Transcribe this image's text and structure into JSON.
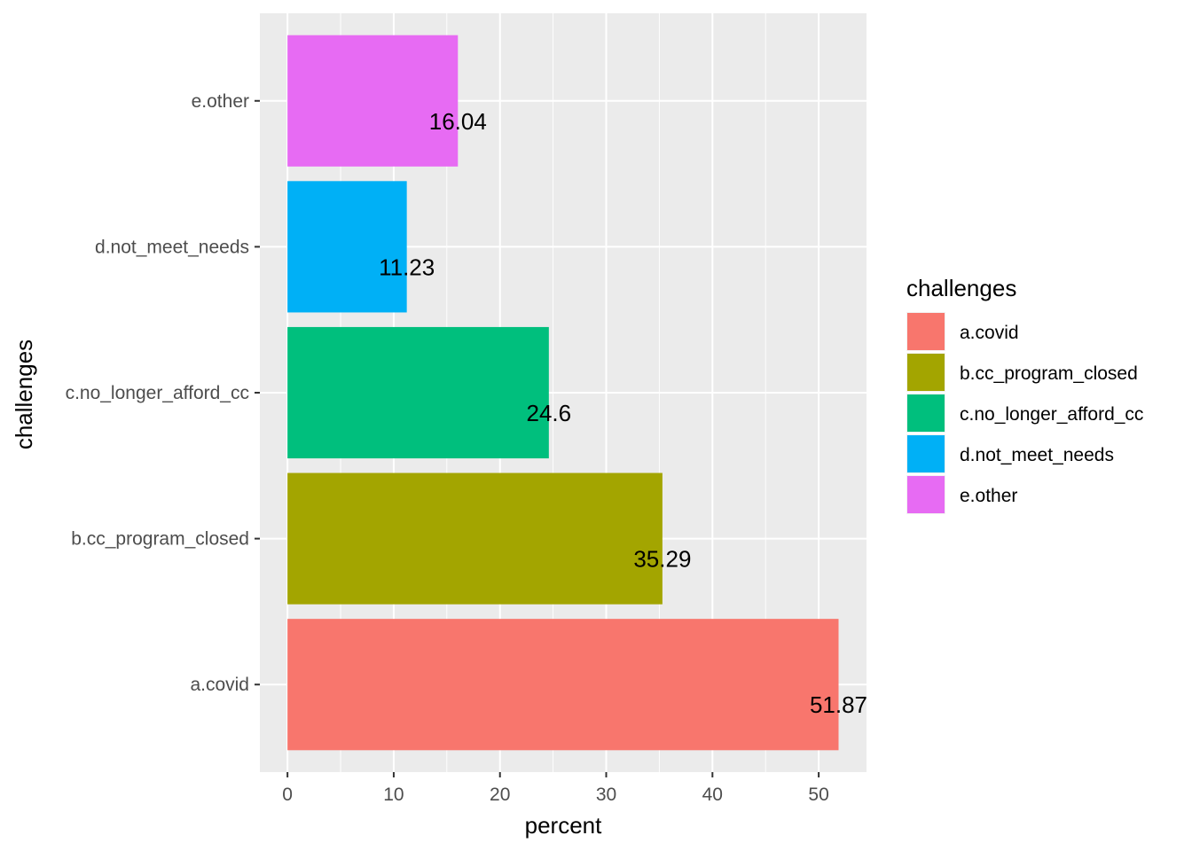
{
  "chart_data": {
    "type": "bar",
    "orientation": "horizontal",
    "title": "",
    "xlabel": "percent",
    "ylabel": "challenges",
    "categories": [
      "a.covid",
      "b.cc_program_closed",
      "c.no_longer_afford_cc",
      "d.not_meet_needs",
      "e.other"
    ],
    "values": [
      51.87,
      35.29,
      24.6,
      11.23,
      16.04
    ],
    "data_labels": [
      "51.87",
      "35.29",
      "24.6",
      "11.23",
      "16.04"
    ],
    "colors": [
      "#F8766D",
      "#A3A500",
      "#00BF7D",
      "#00B0F6",
      "#E76BF3"
    ],
    "xlim": [
      -2.6,
      54.5
    ],
    "x_ticks": [
      0,
      10,
      20,
      30,
      40,
      50
    ],
    "x_tick_labels": [
      "0",
      "10",
      "20",
      "30",
      "40",
      "50"
    ],
    "grid": true,
    "legend": {
      "title": "challenges",
      "position": "right",
      "entries": [
        "a.covid",
        "b.cc_program_closed",
        "c.no_longer_afford_cc",
        "d.not_meet_needs",
        "e.other"
      ]
    }
  }
}
